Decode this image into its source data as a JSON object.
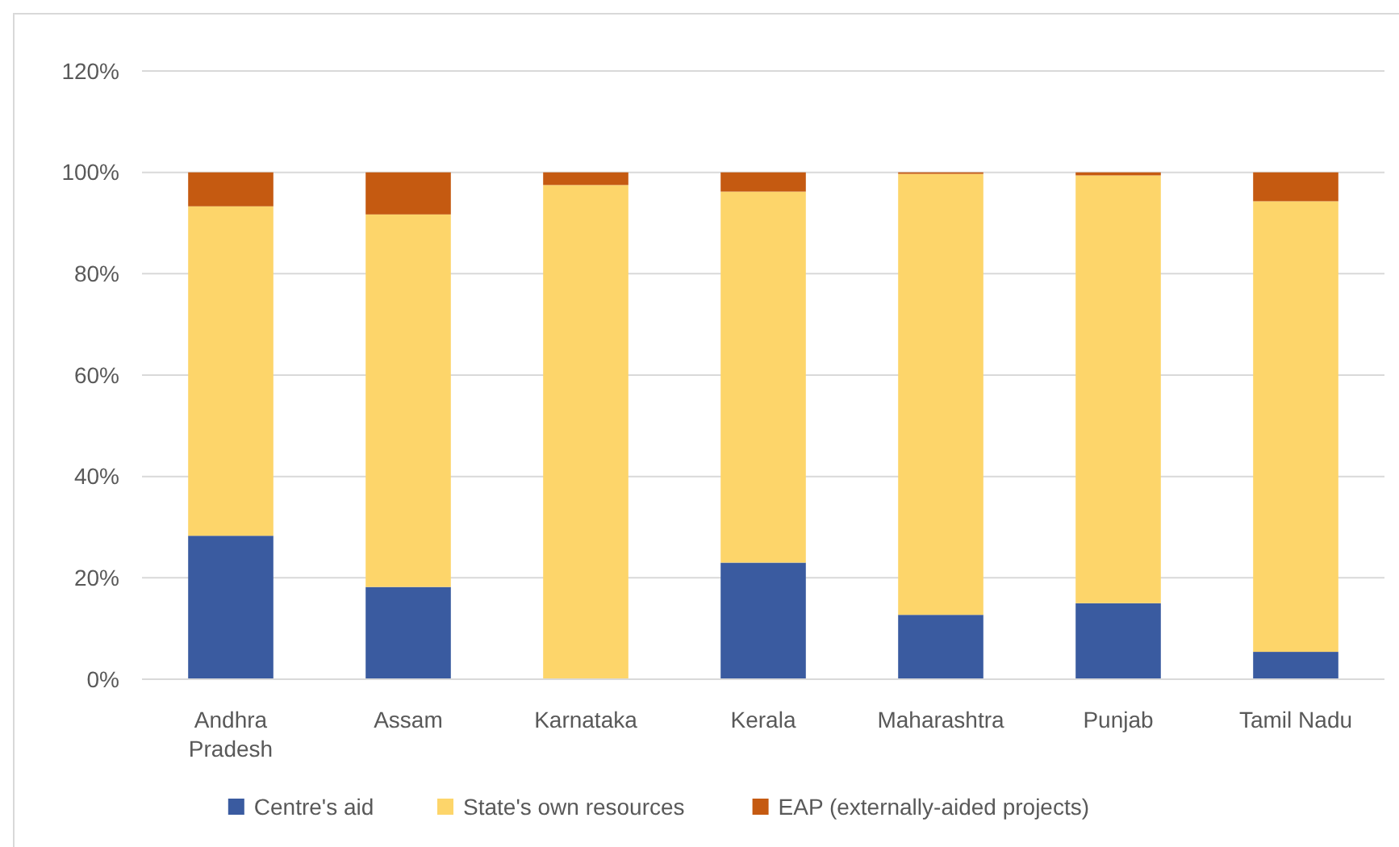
{
  "chart_data": {
    "type": "bar",
    "stacked": true,
    "categories": [
      "Andhra Pradesh",
      "Assam",
      "Karnataka",
      "Kerala",
      "Maharashtra",
      "Punjab",
      "Tamil Nadu"
    ],
    "series": [
      {
        "name": "Centre's aid",
        "color": "#3a5ba0",
        "values": [
          28.3,
          18.2,
          0,
          23,
          12.7,
          15,
          5.4
        ]
      },
      {
        "name": "State's own resources",
        "color": "#fdd56a",
        "values": [
          65,
          73.5,
          97.5,
          73.2,
          87,
          84.4,
          88.9
        ]
      },
      {
        "name": "EAP (externally-aided projects)",
        "color": "#c55a11",
        "values": [
          6.7,
          8.3,
          2.5,
          3.8,
          0.3,
          0.6,
          5.7
        ]
      }
    ],
    "ylim": [
      0,
      120
    ],
    "yticks": [
      {
        "value": 0,
        "label": "0%"
      },
      {
        "value": 20,
        "label": "20%"
      },
      {
        "value": 40,
        "label": "40%"
      },
      {
        "value": 60,
        "label": "60%"
      },
      {
        "value": 80,
        "label": "80%"
      },
      {
        "value": 100,
        "label": "100%"
      },
      {
        "value": 120,
        "label": "120%"
      }
    ],
    "grid": "y",
    "legend": "bottom"
  }
}
